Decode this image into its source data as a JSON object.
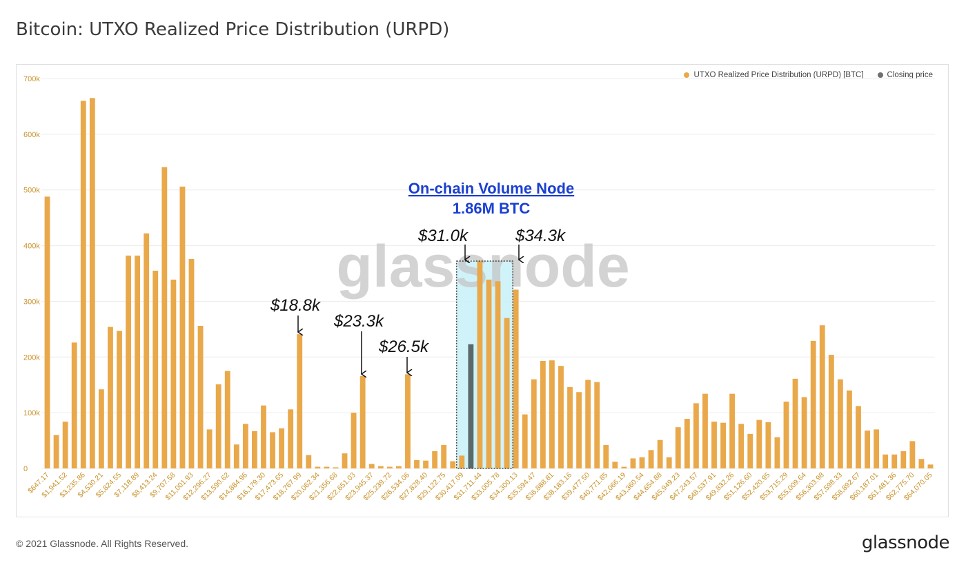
{
  "page": {
    "title": "Bitcoin: UTXO Realized Price Distribution (URPD)",
    "copyright": "© 2021 Glassnode. All Rights Reserved.",
    "brand": "glassnode",
    "watermark": "glassnode"
  },
  "legend": {
    "items": [
      {
        "label": "UTXO Realized Price Distribution (URPD) [BTC]",
        "color": "#e9a84a"
      },
      {
        "label": "Closing price",
        "color": "#707070"
      }
    ]
  },
  "annotations": {
    "node_title": "On-chain Volume Node",
    "node_value": "1.86M BTC",
    "callouts": [
      "$18.8k",
      "$23.3k",
      "$26.5k",
      "$31.0k",
      "$34.3k"
    ]
  },
  "colors": {
    "bar": "#e9a84a",
    "closing": "#5a6a6a",
    "node_fill": "#c8f0f8",
    "node_title": "#1a3fd0",
    "axis_text": "#c8922a"
  },
  "chart_data": {
    "type": "bar",
    "title": "",
    "xlabel": "",
    "ylabel": "",
    "ylim": [
      0,
      700000
    ],
    "yticks": [
      "0",
      "100k",
      "200k",
      "300k",
      "400k",
      "500k",
      "600k",
      "700k"
    ],
    "xtick_labels": [
      "$647.17",
      "$1,941.52",
      "$3,235.86",
      "$4,530.21",
      "$5,824.55",
      "$7,118.89",
      "$8,413.24",
      "$9,707.58",
      "$11,001.93",
      "$12,296.27",
      "$13,590.62",
      "$14,884.96",
      "$16,179.30",
      "$17,473.65",
      "$18,767.99",
      "$20,062.34",
      "$21,356.68",
      "$22,651.03",
      "$23,945.37",
      "$25,239.72",
      "$26,534.06",
      "$27,828.40",
      "$29,122.75",
      "$30,417.09",
      "$31,711.44",
      "$33,005.78",
      "$34,300.13",
      "$35,594.47",
      "$36,888.81",
      "$38,183.16",
      "$39,477.50",
      "$40,771.85",
      "$42,066.19",
      "$43,360.54",
      "$44,654.88",
      "$45,949.23",
      "$47,243.57",
      "$48,537.91",
      "$49,832.26",
      "$51,126.60",
      "$52,420.95",
      "$53,715.29",
      "$55,009.64",
      "$56,303.98",
      "$57,598.33",
      "$58,892.67",
      "$60,187.01",
      "$61,481.36",
      "$62,775.70",
      "$64,070.05"
    ],
    "grid": true,
    "legend_position": "top-right",
    "closing_price_index": 47,
    "volume_node_range": [
      46,
      51
    ],
    "series": [
      {
        "name": "UTXO Realized Price Distribution (URPD) [BTC]",
        "values": [
          488000,
          60000,
          84000,
          226000,
          660000,
          665000,
          142000,
          254000,
          247000,
          382000,
          382000,
          422000,
          355000,
          541000,
          339000,
          506000,
          376000,
          256000,
          70000,
          151000,
          175000,
          43000,
          80000,
          67000,
          113000,
          65000,
          72000,
          106000,
          241000,
          24000,
          3000,
          3000,
          2000,
          27000,
          100000,
          166000,
          8000,
          4000,
          3000,
          4000,
          169000,
          15000,
          14000,
          31000,
          42000,
          13000,
          23000,
          223000,
          372000,
          339000,
          336000,
          270000,
          321000,
          97000,
          160000,
          193000,
          194000,
          184000,
          146000,
          137000,
          159000,
          155000,
          42000,
          12000,
          3000,
          18000,
          20000,
          33000,
          51000,
          20000,
          74000,
          89000,
          117000,
          134000,
          84000,
          82000,
          134000,
          80000,
          62000,
          87000,
          83000,
          56000,
          120000,
          161000,
          128000,
          229000,
          257000,
          204000,
          160000,
          140000,
          112000,
          68000,
          70000,
          25000,
          25000,
          31000,
          49000,
          17000,
          7000
        ]
      }
    ]
  }
}
